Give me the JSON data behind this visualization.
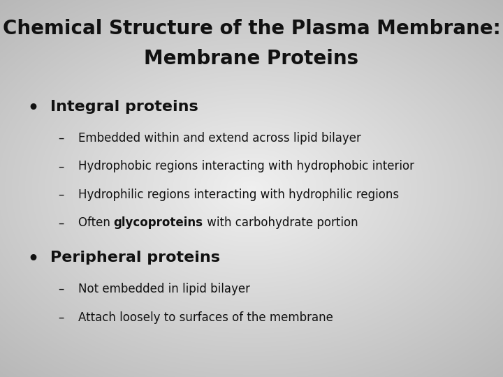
{
  "title_line1": "Chemical Structure of the Plasma Membrane:",
  "title_line2": "Membrane Proteins",
  "title_fontsize": 20,
  "bullet1_text": "Integral proteins",
  "bullet1_fontsize": 16,
  "bullet2_text": "Peripheral proteins",
  "bullet2_fontsize": 16,
  "sub_items_1": [
    "Embedded within and extend across lipid bilayer",
    "Hydrophobic regions interacting with hydrophobic interior",
    "Hydrophilic regions interacting with hydrophilic regions",
    "Often glycoproteins with carbohydrate portion"
  ],
  "sub_items_2": [
    "Not embedded in lipid bilayer",
    "Attach loosely to surfaces of the membrane"
  ],
  "sub_fontsize": 12,
  "text_color": "#111111"
}
